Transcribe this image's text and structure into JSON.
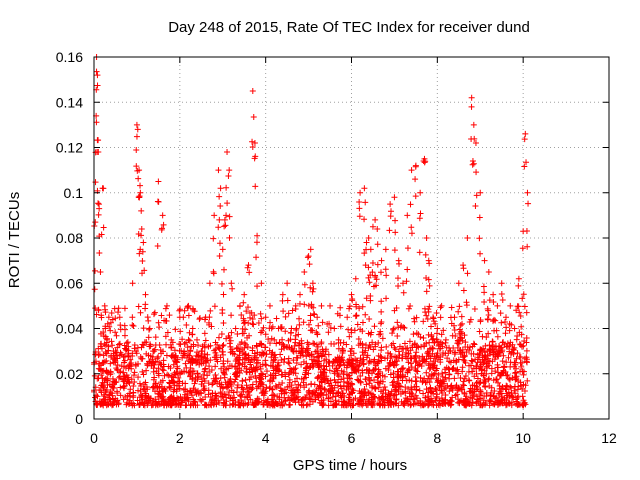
{
  "chart_data": {
    "type": "scatter",
    "title": "Day 248 of 2015, Rate Of TEC Index for receiver dund",
    "xlabel": "GPS time / hours",
    "ylabel": "ROTI / TECUs",
    "xlim": [
      0,
      12
    ],
    "ylim": [
      0,
      0.16
    ],
    "grid": true,
    "marker": "+",
    "color": "#ff0000",
    "x_ticks": [
      0,
      2,
      4,
      6,
      8,
      10,
      12
    ],
    "x_tick_labels": [
      "0",
      "2",
      "4",
      "6",
      "8",
      "10",
      "12"
    ],
    "y_ticks": [
      0,
      0.02,
      0.04,
      0.06,
      0.08,
      0.1,
      0.12,
      0.14,
      0.16
    ],
    "y_tick_labels": [
      "0",
      "0.02",
      "0.04",
      "0.06",
      "0.08",
      "0.1",
      "0.12",
      "0.14",
      "0.16"
    ],
    "series": [
      {
        "name": "ROTI",
        "description_points": "estimated dense cloud between t=0 and t=10.1 h, bulk 0.005-0.035 TECU with peaks",
        "x": [
          0.0,
          0.03,
          0.05,
          0.06,
          0.08,
          0.1,
          0.12,
          0.15,
          0.2,
          0.25,
          0.3,
          0.4,
          0.5,
          0.6,
          0.7,
          0.8,
          0.9,
          1.0,
          1.02,
          1.05,
          1.08,
          1.1,
          1.15,
          1.2,
          1.3,
          1.4,
          1.5,
          1.6,
          1.7,
          1.8,
          1.9,
          2.0,
          2.1,
          2.2,
          2.3,
          2.4,
          2.5,
          2.6,
          2.7,
          2.8,
          2.9,
          2.95,
          3.0,
          3.05,
          3.1,
          3.15,
          3.2,
          3.3,
          3.4,
          3.5,
          3.6,
          3.7,
          3.75,
          3.8,
          3.9,
          4.0,
          4.1,
          4.2,
          4.3,
          4.4,
          4.5,
          4.6,
          4.7,
          4.8,
          4.9,
          5.0,
          5.05,
          5.1,
          5.2,
          5.3,
          5.4,
          5.5,
          5.6,
          5.7,
          5.8,
          5.9,
          6.0,
          6.1,
          6.2,
          6.3,
          6.35,
          6.4,
          6.45,
          6.5,
          6.55,
          6.6,
          6.7,
          6.8,
          6.9,
          7.0,
          7.1,
          7.2,
          7.3,
          7.4,
          7.5,
          7.6,
          7.7,
          7.75,
          7.8,
          7.9,
          8.0,
          8.1,
          8.2,
          8.3,
          8.4,
          8.5,
          8.6,
          8.7,
          8.8,
          8.85,
          8.9,
          9.0,
          9.1,
          9.2,
          9.3,
          9.4,
          9.5,
          9.6,
          9.7,
          9.8,
          9.9,
          10.0,
          10.05,
          10.1
        ],
        "y": [
          0.012,
          0.087,
          0.134,
          0.16,
          0.152,
          0.118,
          0.093,
          0.065,
          0.102,
          0.05,
          0.035,
          0.028,
          0.03,
          0.045,
          0.025,
          0.032,
          0.06,
          0.13,
          0.128,
          0.11,
          0.1,
          0.092,
          0.078,
          0.055,
          0.04,
          0.03,
          0.105,
          0.09,
          0.05,
          0.035,
          0.028,
          0.045,
          0.03,
          0.05,
          0.04,
          0.035,
          0.03,
          0.045,
          0.06,
          0.09,
          0.11,
          0.102,
          0.075,
          0.088,
          0.118,
          0.11,
          0.06,
          0.04,
          0.05,
          0.055,
          0.068,
          0.145,
          0.122,
          0.081,
          0.06,
          0.045,
          0.05,
          0.035,
          0.04,
          0.055,
          0.06,
          0.04,
          0.05,
          0.055,
          0.065,
          0.072,
          0.075,
          0.06,
          0.045,
          0.05,
          0.03,
          0.05,
          0.04,
          0.035,
          0.03,
          0.045,
          0.055,
          0.062,
          0.1,
          0.102,
          0.078,
          0.08,
          0.075,
          0.085,
          0.088,
          0.084,
          0.07,
          0.075,
          0.095,
          0.098,
          0.07,
          0.06,
          0.09,
          0.11,
          0.112,
          0.1,
          0.115,
          0.08,
          0.07,
          0.045,
          0.04,
          0.05,
          0.035,
          0.03,
          0.045,
          0.06,
          0.068,
          0.08,
          0.142,
          0.13,
          0.122,
          0.1,
          0.07,
          0.065,
          0.055,
          0.05,
          0.06,
          0.045,
          0.05,
          0.04,
          0.062,
          0.083,
          0.126,
          0.1
        ]
      }
    ]
  }
}
